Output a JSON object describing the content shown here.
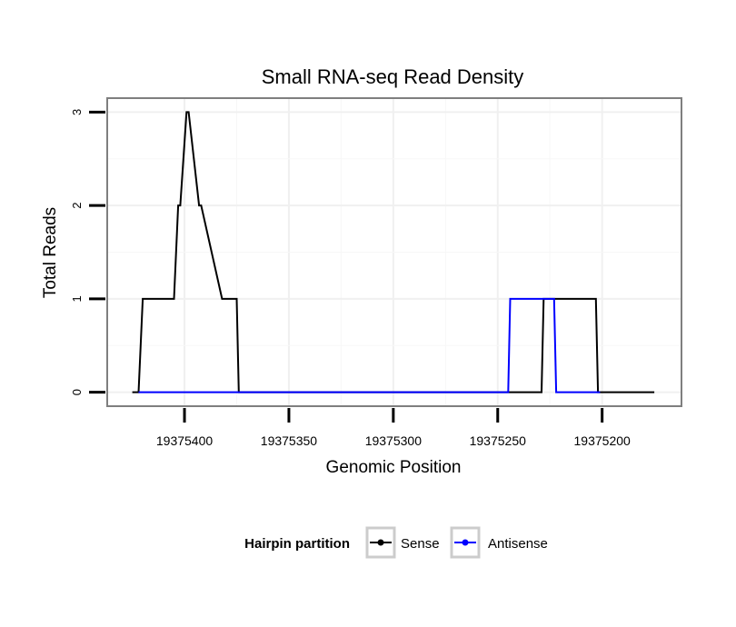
{
  "chart_data": {
    "type": "line",
    "title": "Small RNA-seq Read Density",
    "xlabel": "Genomic Position",
    "ylabel": "Total Reads",
    "xlim": [
      19375437,
      19375162
    ],
    "ylim": [
      -0.15,
      3.15
    ],
    "x_reversed": true,
    "xticks": [
      19375400,
      19375350,
      19375300,
      19375250,
      19375200
    ],
    "xtick_labels": [
      "19375400",
      "19375350",
      "19375300",
      "19375250",
      "19375200"
    ],
    "yticks": [
      0,
      1,
      2,
      3
    ],
    "ytick_labels": [
      "0",
      "1",
      "2",
      "3"
    ],
    "grid": true,
    "legend": {
      "title": "Hairpin partition",
      "position": "bottom",
      "entries": [
        "Sense",
        "Antisense"
      ]
    },
    "series": [
      {
        "name": "Sense",
        "color": "#000000",
        "x": [
          19375425,
          19375422,
          19375420,
          19375405,
          19375403,
          19375402,
          19375399,
          19375398,
          19375393,
          19375392,
          19375382,
          19375380,
          19375375,
          19375374,
          19375229,
          19375228,
          19375225,
          19375224,
          19375203,
          19375202,
          19375175
        ],
        "y": [
          0,
          0,
          1,
          1,
          2,
          2,
          3,
          3,
          2,
          2,
          1,
          1,
          1,
          0,
          0,
          1,
          1,
          1,
          1,
          0,
          0
        ]
      },
      {
        "name": "Antisense",
        "color": "#0000ff",
        "x": [
          19375422,
          19375245,
          19375244,
          19375229,
          19375226,
          19375225,
          19375223,
          19375222,
          19375202,
          19375201
        ],
        "y": [
          0,
          0,
          1,
          1,
          1,
          1,
          1,
          0,
          0,
          0
        ]
      }
    ]
  }
}
